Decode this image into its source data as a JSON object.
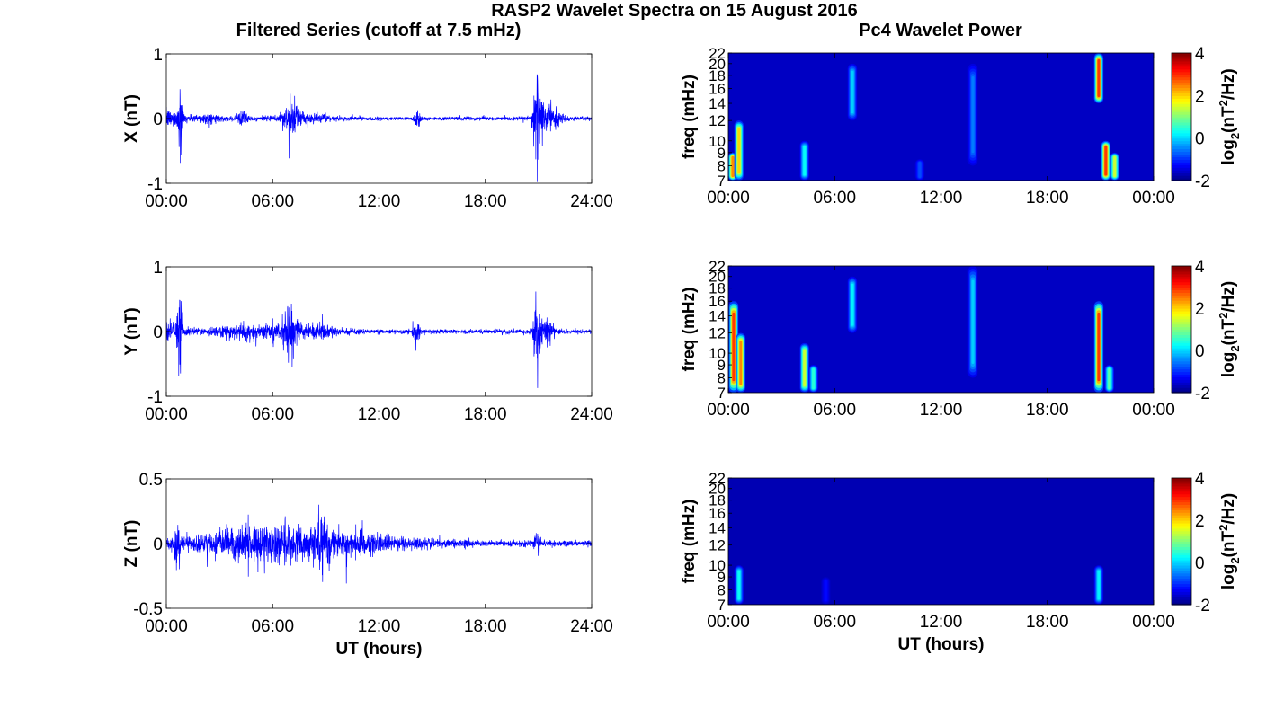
{
  "figure": {
    "suptitle": "RASP2 Wavelet Spectra on 15 August 2016",
    "left_title": "Filtered Series (cutoff at 7.5 mHz)",
    "right_title": "Pc4 Wavelet Power"
  },
  "chart_data": [
    {
      "type": "line",
      "name": "X",
      "ylabel": "X (nT)",
      "xlabel": "",
      "xlim": [
        0,
        24
      ],
      "ylim": [
        -1,
        1
      ],
      "xticks": [
        0,
        6,
        12,
        18,
        24
      ],
      "xtick_labels": [
        "00:00",
        "06:00",
        "12:00",
        "18:00",
        "24:00"
      ],
      "ytick_labels": [
        "1",
        "0",
        "-1"
      ],
      "series_color": "#0000ff",
      "envelope": {
        "baseline": 0.025,
        "bursts": [
          [
            0.8,
            0.08,
            0.55
          ],
          [
            0.2,
            0.5,
            0.1
          ],
          [
            2.2,
            0.6,
            0.05
          ],
          [
            4.3,
            0.2,
            0.12
          ],
          [
            7.0,
            0.3,
            0.18
          ],
          [
            7.6,
            1.0,
            0.06
          ],
          [
            14.2,
            0.12,
            0.15
          ],
          [
            20.9,
            0.12,
            0.7
          ],
          [
            21.3,
            0.3,
            0.25
          ],
          [
            22.0,
            0.3,
            0.1
          ]
        ]
      }
    },
    {
      "type": "line",
      "name": "Y",
      "ylabel": "Y (nT)",
      "xlabel": "",
      "xlim": [
        0,
        24
      ],
      "ylim": [
        -1,
        1
      ],
      "xticks": [
        0,
        6,
        12,
        18,
        24
      ],
      "xtick_labels": [
        "00:00",
        "06:00",
        "12:00",
        "18:00",
        "24:00"
      ],
      "ytick_labels": [
        "1",
        "0",
        "-1"
      ],
      "series_color": "#0000ff",
      "envelope": {
        "baseline": 0.03,
        "bursts": [
          [
            0.75,
            0.08,
            0.7
          ],
          [
            0.3,
            0.5,
            0.12
          ],
          [
            4.5,
            1.5,
            0.08
          ],
          [
            7.0,
            0.25,
            0.25
          ],
          [
            7.8,
            1.4,
            0.08
          ],
          [
            14.1,
            0.12,
            0.15
          ],
          [
            20.9,
            0.12,
            0.65
          ],
          [
            21.5,
            0.3,
            0.15
          ]
        ]
      }
    },
    {
      "type": "line",
      "name": "Z",
      "ylabel": "Z (nT)",
      "xlabel": "UT (hours)",
      "xlim": [
        0,
        24
      ],
      "ylim": [
        -0.5,
        0.5
      ],
      "xticks": [
        0,
        6,
        12,
        18,
        24
      ],
      "xtick_labels": [
        "00:00",
        "06:00",
        "12:00",
        "18:00",
        "24:00"
      ],
      "ytick_labels": [
        "0.5",
        "0",
        "-0.5"
      ],
      "series_color": "#0000ff",
      "envelope": {
        "baseline": 0.02,
        "bursts": [
          [
            5.5,
            2.8,
            0.09
          ],
          [
            9.5,
            3.5,
            0.05
          ],
          [
            0.6,
            0.1,
            0.15
          ],
          [
            8.8,
            0.2,
            0.1
          ],
          [
            20.9,
            0.1,
            0.08
          ]
        ]
      }
    },
    {
      "type": "heatmap",
      "name": "X wavelet power",
      "ylabel": "freq (mHz)",
      "xlabel": "",
      "xlim": [
        0,
        24
      ],
      "ylim": [
        7,
        22
      ],
      "xticks": [
        0,
        6,
        12,
        18,
        24
      ],
      "xtick_labels": [
        "00:00",
        "06:00",
        "12:00",
        "18:00",
        "00:00"
      ],
      "yticks": [
        7,
        8,
        9,
        10,
        12,
        14,
        16,
        18,
        20,
        22
      ],
      "ytick_labels": [
        "7",
        "8",
        "9",
        "10",
        "12",
        "14",
        "16",
        "18",
        "20",
        "22"
      ],
      "colorbar": {
        "label": "log2(nT^2/Hz)",
        "label_base": "log",
        "label_sub": "2",
        "label_open": "(nT",
        "label_sup": "2",
        "label_close": "/Hz)",
        "min": -2,
        "max": 4,
        "tick_labels": [
          "4",
          "2",
          "0",
          "-2"
        ]
      },
      "background_level": -1.6,
      "features": [
        {
          "t": 0.25,
          "f": [
            7,
            9
          ],
          "level": 2.5
        },
        {
          "t": 0.6,
          "f": [
            7,
            12
          ],
          "level": 2.0
        },
        {
          "t": 4.3,
          "f": [
            7,
            10
          ],
          "level": 0.3
        },
        {
          "t": 7.0,
          "f": [
            12,
            20
          ],
          "level": 0.0
        },
        {
          "t": 10.8,
          "f": [
            7,
            8.5
          ],
          "level": -0.8
        },
        {
          "t": 13.8,
          "f": [
            8,
            20
          ],
          "level": -0.5
        },
        {
          "t": 20.9,
          "f": [
            14,
            22
          ],
          "level": 3.0
        },
        {
          "t": 21.3,
          "f": [
            7,
            10
          ],
          "level": 3.0
        },
        {
          "t": 21.8,
          "f": [
            7,
            9
          ],
          "level": 1.5
        }
      ]
    },
    {
      "type": "heatmap",
      "name": "Y wavelet power",
      "ylabel": "freq (mHz)",
      "xlabel": "",
      "xlim": [
        0,
        24
      ],
      "ylim": [
        7,
        22
      ],
      "xticks": [
        0,
        6,
        12,
        18,
        24
      ],
      "xtick_labels": [
        "00:00",
        "06:00",
        "12:00",
        "18:00",
        "00:00"
      ],
      "yticks": [
        7,
        8,
        9,
        10,
        12,
        14,
        16,
        18,
        20,
        22
      ],
      "ytick_labels": [
        "7",
        "8",
        "9",
        "10",
        "12",
        "14",
        "16",
        "18",
        "20",
        "22"
      ],
      "colorbar": {
        "label": "log2(nT^2/Hz)",
        "label_base": "log",
        "label_sub": "2",
        "label_open": "(nT",
        "label_sup": "2",
        "label_close": "/Hz)",
        "min": -2,
        "max": 4,
        "tick_labels": [
          "4",
          "2",
          "0",
          "-2"
        ]
      },
      "background_level": -1.6,
      "features": [
        {
          "t": 0.3,
          "f": [
            7,
            16
          ],
          "level": 3.0
        },
        {
          "t": 0.7,
          "f": [
            7,
            12
          ],
          "level": 2.5
        },
        {
          "t": 4.3,
          "f": [
            7,
            11
          ],
          "level": 1.5
        },
        {
          "t": 4.8,
          "f": [
            7,
            9
          ],
          "level": 0.5
        },
        {
          "t": 7.0,
          "f": [
            12,
            20
          ],
          "level": 0.2
        },
        {
          "t": 13.8,
          "f": [
            8,
            22
          ],
          "level": 0.0
        },
        {
          "t": 20.9,
          "f": [
            7,
            16
          ],
          "level": 3.0
        },
        {
          "t": 21.5,
          "f": [
            7,
            9
          ],
          "level": 0.8
        }
      ]
    },
    {
      "type": "heatmap",
      "name": "Z wavelet power",
      "ylabel": "freq (mHz)",
      "xlabel": "UT (hours)",
      "xlim": [
        0,
        24
      ],
      "ylim": [
        7,
        22
      ],
      "xticks": [
        0,
        6,
        12,
        18,
        24
      ],
      "xtick_labels": [
        "00:00",
        "06:00",
        "12:00",
        "18:00",
        "00:00"
      ],
      "yticks": [
        7,
        8,
        9,
        10,
        12,
        14,
        16,
        18,
        20,
        22
      ],
      "ytick_labels": [
        "7",
        "8",
        "9",
        "10",
        "12",
        "14",
        "16",
        "18",
        "20",
        "22"
      ],
      "colorbar": {
        "label": "log2(nT^2/Hz)",
        "label_base": "log",
        "label_sub": "2",
        "label_open": "(nT",
        "label_sup": "2",
        "label_close": "/Hz)",
        "min": -2,
        "max": 4,
        "tick_labels": [
          "4",
          "2",
          "0",
          "-2"
        ]
      },
      "background_level": -1.7,
      "features": [
        {
          "t": 0.6,
          "f": [
            7,
            10
          ],
          "level": 0.3
        },
        {
          "t": 5.5,
          "f": [
            7,
            9
          ],
          "level": -1.2
        },
        {
          "t": 20.9,
          "f": [
            7,
            10
          ],
          "level": 0.2
        }
      ]
    }
  ]
}
